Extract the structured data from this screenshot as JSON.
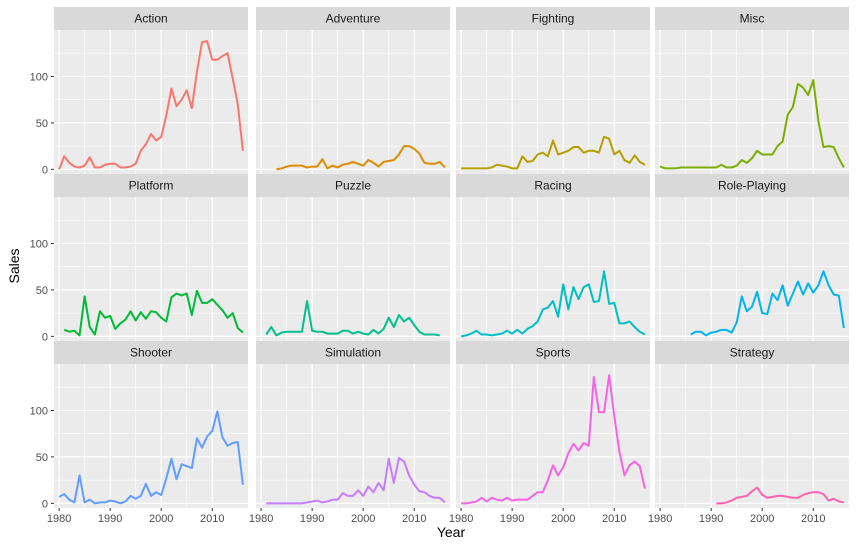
{
  "chart_data": {
    "type": "line",
    "layout": "facet-grid-3x4",
    "xlabel": "Year",
    "ylabel": "Sales",
    "xlim": [
      1979,
      2017
    ],
    "ylim": [
      -5,
      150
    ],
    "x_ticks": [
      1980,
      1990,
      2000,
      2010
    ],
    "y_ticks": [
      0,
      50,
      100
    ],
    "grid": true,
    "legend": "none",
    "panel_background": "#ebebeb",
    "strip_background": "#d9d9d9",
    "grid_color": "#ffffff",
    "series": [
      {
        "name": "Action",
        "color": "#F8766D",
        "x": [
          1980,
          1981,
          1982,
          1983,
          1984,
          1985,
          1986,
          1987,
          1988,
          1989,
          1990,
          1991,
          1992,
          1993,
          1994,
          1995,
          1996,
          1997,
          1998,
          1999,
          2000,
          2001,
          2002,
          2003,
          2004,
          2005,
          2006,
          2007,
          2008,
          2009,
          2010,
          2011,
          2012,
          2013,
          2014,
          2015,
          2016
        ],
        "y": [
          0,
          14,
          7,
          3,
          2,
          4,
          13,
          2,
          2,
          5,
          6,
          6,
          2,
          2,
          3,
          6,
          20,
          27,
          38,
          31,
          35,
          58,
          87,
          68,
          75,
          85,
          66,
          105,
          137,
          138,
          118,
          118,
          122,
          125,
          98,
          70,
          20
        ]
      },
      {
        "name": "Adventure",
        "color": "#DE8C00",
        "x": [
          1983,
          1984,
          1985,
          1986,
          1987,
          1988,
          1989,
          1990,
          1991,
          1992,
          1993,
          1994,
          1995,
          1996,
          1997,
          1998,
          1999,
          2000,
          2001,
          2002,
          2003,
          2004,
          2005,
          2006,
          2007,
          2008,
          2009,
          2010,
          2011,
          2012,
          2013,
          2014,
          2015,
          2016
        ],
        "y": [
          0,
          1,
          3,
          4,
          4,
          4,
          2,
          3,
          3,
          11,
          1,
          4,
          2,
          5,
          6,
          8,
          6,
          4,
          10,
          7,
          3,
          8,
          9,
          10,
          16,
          25,
          25,
          22,
          17,
          7,
          6,
          6,
          8,
          2
        ]
      },
      {
        "name": "Fighting",
        "color": "#B79F00",
        "x": [
          1980,
          1981,
          1982,
          1983,
          1984,
          1985,
          1986,
          1987,
          1988,
          1989,
          1990,
          1991,
          1992,
          1993,
          1994,
          1995,
          1996,
          1997,
          1998,
          1999,
          2000,
          2001,
          2002,
          2003,
          2004,
          2005,
          2006,
          2007,
          2008,
          2009,
          2010,
          2011,
          2012,
          2013,
          2014,
          2015,
          2016
        ],
        "y": [
          1,
          1,
          1,
          1,
          1,
          1,
          2,
          5,
          4,
          3,
          1,
          1,
          14,
          8,
          9,
          16,
          18,
          14,
          31,
          16,
          18,
          20,
          24,
          24,
          18,
          20,
          20,
          18,
          35,
          33,
          16,
          20,
          10,
          7,
          15,
          8,
          5
        ]
      },
      {
        "name": "Misc",
        "color": "#7CAE00",
        "x": [
          1980,
          1981,
          1982,
          1983,
          1984,
          1985,
          1986,
          1987,
          1988,
          1989,
          1990,
          1991,
          1992,
          1993,
          1994,
          1995,
          1996,
          1997,
          1998,
          1999,
          2000,
          2001,
          2002,
          2003,
          2004,
          2005,
          2006,
          2007,
          2008,
          2009,
          2010,
          2011,
          2012,
          2013,
          2014,
          2015,
          2016
        ],
        "y": [
          3,
          1,
          1,
          1,
          2,
          2,
          2,
          2,
          2,
          2,
          2,
          2,
          5,
          2,
          2,
          4,
          10,
          7,
          12,
          20,
          16,
          16,
          16,
          25,
          30,
          59,
          67,
          92,
          88,
          80,
          96,
          52,
          24,
          25,
          24,
          12,
          2
        ]
      },
      {
        "name": "Platform",
        "color": "#00BA38",
        "x": [
          1981,
          1982,
          1983,
          1984,
          1985,
          1986,
          1987,
          1988,
          1989,
          1990,
          1991,
          1992,
          1993,
          1994,
          1995,
          1996,
          1997,
          1998,
          1999,
          2000,
          2001,
          2002,
          2003,
          2004,
          2005,
          2006,
          2007,
          2008,
          2009,
          2010,
          2011,
          2012,
          2013,
          2014,
          2015,
          2016
        ],
        "y": [
          7,
          5,
          6,
          1,
          43,
          10,
          2,
          27,
          20,
          22,
          8,
          14,
          18,
          27,
          17,
          26,
          19,
          27,
          26,
          20,
          16,
          42,
          46,
          44,
          46,
          23,
          49,
          36,
          36,
          40,
          34,
          28,
          20,
          25,
          9,
          4
        ]
      },
      {
        "name": "Puzzle",
        "color": "#00C08B",
        "x": [
          1981,
          1982,
          1983,
          1984,
          1985,
          1986,
          1987,
          1988,
          1989,
          1990,
          1991,
          1992,
          1993,
          1994,
          1995,
          1996,
          1997,
          1998,
          1999,
          2000,
          2001,
          2002,
          2003,
          2004,
          2005,
          2006,
          2007,
          2008,
          2009,
          2010,
          2011,
          2012,
          2013,
          2014,
          2015
        ],
        "y": [
          2,
          10,
          1,
          4,
          5,
          5,
          5,
          5,
          38,
          6,
          5,
          5,
          3,
          3,
          3,
          6,
          6,
          3,
          5,
          3,
          2,
          7,
          3,
          8,
          20,
          10,
          23,
          16,
          20,
          12,
          5,
          2,
          2,
          2,
          1
        ]
      },
      {
        "name": "Racing",
        "color": "#00BFC4",
        "x": [
          1980,
          1981,
          1982,
          1983,
          1984,
          1985,
          1986,
          1987,
          1988,
          1989,
          1990,
          1991,
          1992,
          1993,
          1994,
          1995,
          1996,
          1997,
          1998,
          1999,
          2000,
          2001,
          2002,
          2003,
          2004,
          2005,
          2006,
          2007,
          2008,
          2009,
          2010,
          2011,
          2012,
          2013,
          2014,
          2015,
          2016
        ],
        "y": [
          0,
          1,
          3,
          6,
          2,
          2,
          1,
          2,
          3,
          6,
          3,
          7,
          3,
          8,
          11,
          16,
          29,
          31,
          38,
          21,
          56,
          29,
          53,
          40,
          53,
          56,
          37,
          38,
          70,
          35,
          36,
          14,
          14,
          16,
          10,
          5,
          2
        ]
      },
      {
        "name": "Role-Playing",
        "color": "#00B4F0",
        "x": [
          1986,
          1987,
          1988,
          1989,
          1990,
          1991,
          1992,
          1993,
          1994,
          1995,
          1996,
          1997,
          1998,
          1999,
          2000,
          2001,
          2002,
          2003,
          2004,
          2005,
          2006,
          2007,
          2008,
          2009,
          2010,
          2011,
          2012,
          2013,
          2014,
          2015,
          2016
        ],
        "y": [
          2,
          5,
          5,
          1,
          4,
          5,
          7,
          7,
          4,
          15,
          43,
          27,
          32,
          48,
          25,
          24,
          46,
          39,
          55,
          33,
          46,
          59,
          45,
          57,
          47,
          55,
          70,
          55,
          45,
          44,
          9
        ]
      },
      {
        "name": "Shooter",
        "color": "#619CFF",
        "x": [
          1980,
          1981,
          1982,
          1983,
          1984,
          1985,
          1986,
          1987,
          1988,
          1989,
          1990,
          1991,
          1992,
          1993,
          1994,
          1995,
          1996,
          1997,
          1998,
          1999,
          2000,
          2001,
          2002,
          2003,
          2004,
          2005,
          2006,
          2007,
          2008,
          2009,
          2010,
          2011,
          2012,
          2013,
          2014,
          2015,
          2016
        ],
        "y": [
          7,
          10,
          4,
          1,
          30,
          1,
          4,
          0,
          1,
          1,
          3,
          2,
          0,
          2,
          8,
          5,
          8,
          21,
          8,
          12,
          9,
          27,
          48,
          26,
          42,
          40,
          38,
          70,
          60,
          72,
          78,
          99,
          71,
          62,
          65,
          66,
          20
        ]
      },
      {
        "name": "Simulation",
        "color": "#C77CFF",
        "x": [
          1981,
          1982,
          1983,
          1984,
          1985,
          1986,
          1987,
          1988,
          1989,
          1990,
          1991,
          1992,
          1993,
          1994,
          1995,
          1996,
          1997,
          1998,
          1999,
          2000,
          2001,
          2002,
          2003,
          2004,
          2005,
          2006,
          2007,
          2008,
          2009,
          2010,
          2011,
          2012,
          2013,
          2014,
          2015,
          2016
        ],
        "y": [
          0,
          0,
          0,
          0,
          0,
          0,
          0,
          0,
          1,
          2,
          3,
          1,
          2,
          4,
          4,
          11,
          8,
          8,
          14,
          8,
          18,
          12,
          22,
          14,
          48,
          22,
          49,
          45,
          30,
          20,
          13,
          12,
          8,
          6,
          6,
          1
        ]
      },
      {
        "name": "Sports",
        "color": "#F564E3",
        "x": [
          1980,
          1981,
          1982,
          1983,
          1984,
          1985,
          1986,
          1987,
          1988,
          1989,
          1990,
          1991,
          1992,
          1993,
          1994,
          1995,
          1996,
          1997,
          1998,
          1999,
          2000,
          2001,
          2002,
          2003,
          2004,
          2005,
          2006,
          2007,
          2008,
          2009,
          2010,
          2011,
          2012,
          2013,
          2014,
          2015,
          2016
        ],
        "y": [
          0,
          0,
          1,
          2,
          6,
          2,
          6,
          4,
          3,
          6,
          3,
          4,
          4,
          4,
          8,
          12,
          12,
          25,
          41,
          30,
          39,
          54,
          64,
          57,
          65,
          62,
          136,
          98,
          98,
          138,
          94,
          56,
          30,
          41,
          45,
          40,
          16
        ]
      },
      {
        "name": "Strategy",
        "color": "#FF64B0",
        "x": [
          1991,
          1992,
          1993,
          1994,
          1995,
          1996,
          1997,
          1998,
          1999,
          2000,
          2001,
          2002,
          2003,
          2004,
          2005,
          2006,
          2007,
          2008,
          2009,
          2010,
          2011,
          2012,
          2013,
          2014,
          2015,
          2016
        ],
        "y": [
          0,
          0,
          1,
          3,
          6,
          7,
          8,
          13,
          17,
          9,
          6,
          7,
          8,
          8,
          7,
          6,
          6,
          9,
          11,
          12,
          12,
          10,
          3,
          5,
          2,
          1
        ]
      }
    ]
  }
}
